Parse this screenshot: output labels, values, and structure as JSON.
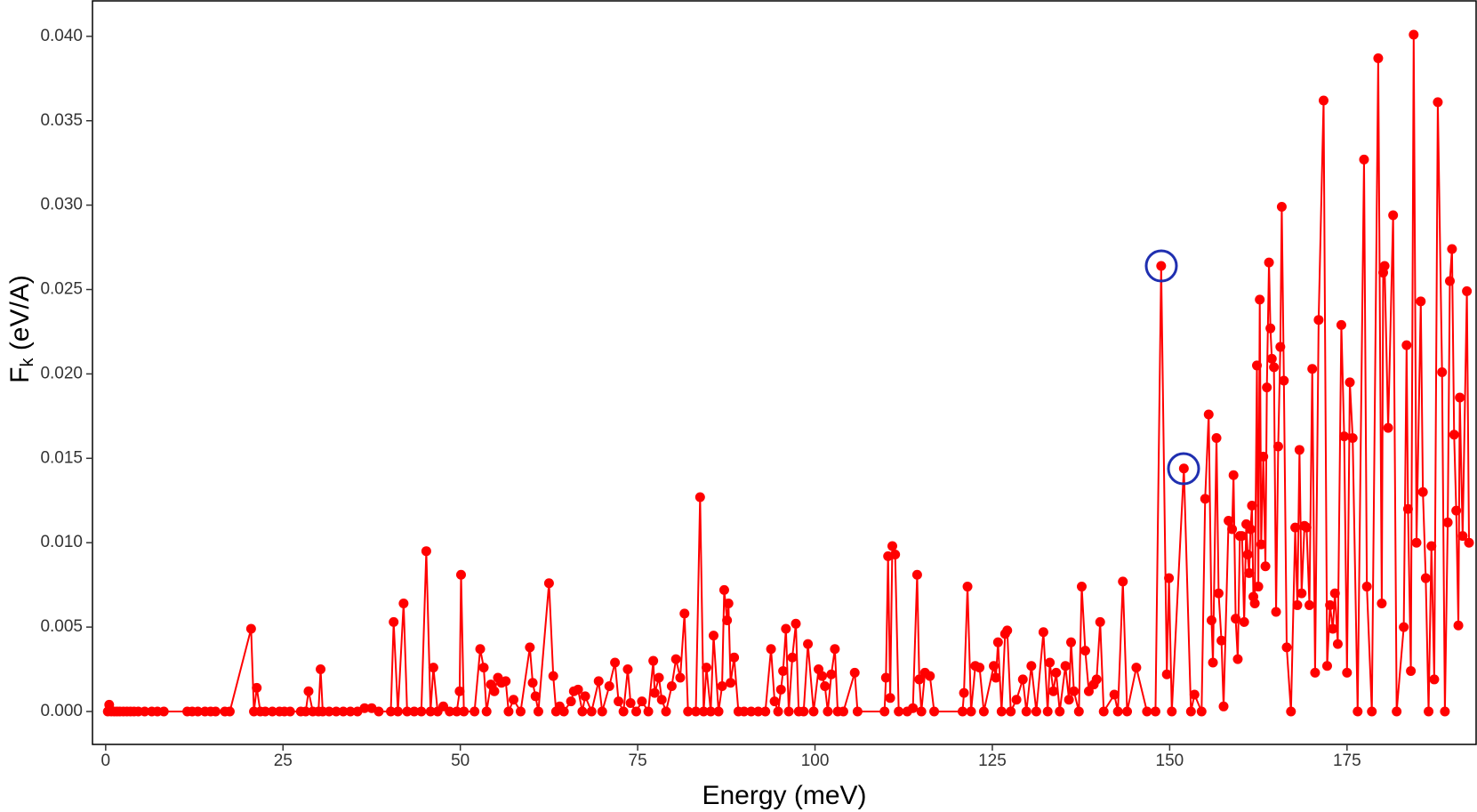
{
  "chart_data": {
    "type": "line",
    "xlabel": "Energy (meV)",
    "ylabel": [
      "F",
      "k",
      " (eV/A)"
    ],
    "color": "#ff0000",
    "highlight_color": "#1f2fb0",
    "xlim": [
      -1.86,
      193.2
    ],
    "ylim": [
      -0.00195,
      0.0421
    ],
    "xticks": [
      0,
      25,
      50,
      75,
      100,
      125,
      150,
      175
    ],
    "yticks": [
      {
        "value": 0,
        "label": "0.000"
      },
      {
        "value": 0.005,
        "label": "0.005"
      },
      {
        "value": 0.01,
        "label": "0.010"
      },
      {
        "value": 0.015,
        "label": "0.015"
      },
      {
        "value": 0.02,
        "label": "0.020"
      },
      {
        "value": 0.025,
        "label": "0.025"
      },
      {
        "value": 0.03,
        "label": "0.030"
      },
      {
        "value": 0.035,
        "label": "0.035"
      },
      {
        "value": 0.04,
        "label": "0.040"
      }
    ],
    "x": [
      0.3,
      0.5,
      0.8,
      1.2,
      1.6,
      2.0,
      2.5,
      3.0,
      3.5,
      4.0,
      4.6,
      5.5,
      6.5,
      7.3,
      8.2,
      11.5,
      12.2,
      13.0,
      14.0,
      14.8,
      15.5,
      16.8,
      17.5,
      20.5,
      20.9,
      21.3,
      21.8,
      22.5,
      23.5,
      24.5,
      25.2,
      26.0,
      27.5,
      28.2,
      28.6,
      29.2,
      30.0,
      30.3,
      30.6,
      31.5,
      32.5,
      33.5,
      34.5,
      35.5,
      36.5,
      37.5,
      38.5,
      40.2,
      40.6,
      41.2,
      42.0,
      42.5,
      43.5,
      44.5,
      45.2,
      45.8,
      46.2,
      46.8,
      47.6,
      48.5,
      49.5,
      49.9,
      50.1,
      50.5,
      52.0,
      52.8,
      53.3,
      53.7,
      54.3,
      54.8,
      55.3,
      55.8,
      56.4,
      56.8,
      57.5,
      58.5,
      59.8,
      60.2,
      60.6,
      61.0,
      62.5,
      63.1,
      63.5,
      64.0,
      64.6,
      65.6,
      66.0,
      66.6,
      67.2,
      67.6,
      68.5,
      69.5,
      70.0,
      71.0,
      71.8,
      72.3,
      73.0,
      73.6,
      74.0,
      74.8,
      75.6,
      76.5,
      77.2,
      77.4,
      78.0,
      78.4,
      79.0,
      79.8,
      80.4,
      81.0,
      81.6,
      82.1,
      83.2,
      83.8,
      84.3,
      84.7,
      85.3,
      85.7,
      86.4,
      86.9,
      87.2,
      87.6,
      87.8,
      88.1,
      88.6,
      89.2,
      90,
      91,
      92,
      93,
      93.8,
      94.3,
      94.8,
      95.2,
      95.5,
      95.9,
      96.3,
      96.8,
      97.3,
      97.7,
      98.4,
      99.0,
      99.8,
      100.5,
      101.0,
      101.4,
      101.8,
      102.3,
      102.8,
      103.2,
      104.0,
      105.6,
      106.0,
      109.8,
      110.0,
      110.3,
      110.6,
      110.9,
      111.3,
      111.8,
      113.0,
      113.8,
      114.4,
      114.7,
      115.0,
      115.5,
      116.2,
      116.8,
      120.8,
      121.0,
      121.5,
      122.0,
      122.6,
      123.2,
      123.8,
      125.2,
      125.5,
      125.8,
      126.3,
      126.8,
      127.1,
      127.6,
      128.4,
      129.3,
      129.8,
      130.5,
      131.2,
      132.2,
      132.8,
      133.1,
      133.6,
      134.0,
      134.5,
      135.3,
      135.8,
      136.1,
      136.5,
      137.2,
      137.6,
      138.1,
      138.6,
      139.3,
      139.7,
      140.2,
      140.7,
      142.2,
      142.7,
      143.4,
      144.0,
      145.3,
      146.8,
      148.0,
      148.8,
      149.6,
      149.9,
      150.3,
      152.0,
      153.0,
      153.5,
      154.5,
      155.0,
      155.5,
      155.9,
      156.1,
      156.6,
      156.9,
      157.3,
      157.6,
      158.3,
      158.8,
      159.0,
      159.3,
      159.6,
      159.9,
      160.2,
      160.5,
      160.8,
      161.0,
      161.2,
      161.4,
      161.6,
      161.8,
      162.0,
      162.3,
      162.5,
      162.7,
      162.9,
      163.2,
      163.5,
      163.7,
      164.0,
      164.2,
      164.4,
      164.7,
      165.0,
      165.3,
      165.6,
      165.8,
      166.1,
      166.5,
      167.1,
      167.7,
      168.0,
      168.3,
      168.6,
      169.0,
      169.3,
      169.7,
      170.1,
      170.5,
      171,
      171.7,
      172.2,
      172.6,
      173,
      173.3,
      173.7,
      174.2,
      174.6,
      175,
      175.4,
      175.8,
      176.5,
      177.4,
      177.8,
      178.5,
      179.4,
      179.9,
      180.1,
      180.3,
      180.8,
      181.5,
      182,
      183,
      183.4,
      183.6,
      184,
      184.4,
      184.8,
      185.4,
      185.7,
      186.1,
      186.5,
      186.9,
      187.3,
      187.8,
      188.4,
      188.8,
      189.2,
      189.5,
      189.8,
      190.1,
      190.4,
      190.7,
      190.9,
      191.3,
      191.9,
      192.2
    ],
    "values": [
      0,
      0.0004,
      0,
      0,
      0,
      0,
      0,
      0,
      0,
      0,
      0,
      0,
      0,
      0,
      0,
      0,
      0,
      0,
      0,
      0,
      0,
      0,
      0,
      0.0049,
      0,
      0.0014,
      0,
      0,
      0,
      0,
      0,
      0,
      0,
      0,
      0.0012,
      0,
      0,
      0.0025,
      0,
      0,
      0,
      0,
      0,
      0,
      0.0002,
      0.0002,
      0,
      0,
      0.0053,
      0,
      0.0064,
      0,
      0,
      0,
      0.0095,
      0,
      0.0026,
      0,
      0.0003,
      0,
      0,
      0.0012,
      0.0081,
      0,
      0,
      0.0037,
      0.0026,
      0,
      0.0016,
      0.0012,
      0.002,
      0.0017,
      0.0018,
      0,
      0.0007,
      0,
      0.0038,
      0.0017,
      0.0009,
      0,
      0.0076,
      0.0021,
      0,
      0.0003,
      0,
      0.0006,
      0.0012,
      0.0013,
      0,
      0.0009,
      0,
      0.0018,
      0,
      0.0015,
      0.0029,
      0.0006,
      0,
      0.0025,
      0.0005,
      0,
      0.0006,
      0,
      0.003,
      0.0011,
      0.002,
      0.0007,
      0,
      0.0015,
      0.0031,
      0.002,
      0.0058,
      0,
      0,
      0.0127,
      0,
      0.0026,
      0,
      0.0045,
      0,
      0.0015,
      0.0072,
      0.0054,
      0.0064,
      0.0017,
      0.0032,
      0,
      0,
      0,
      0,
      0,
      0.0037,
      0.0006,
      0,
      0.0013,
      0.0024,
      0.0049,
      0,
      0.0032,
      0.0052,
      0,
      0,
      0.004,
      0,
      0.0025,
      0.0021,
      0.0015,
      0,
      0.0022,
      0.0037,
      0,
      0,
      0.0023,
      0,
      0,
      0.002,
      0.0092,
      0.0008,
      0.0098,
      0.0093,
      0,
      0,
      0.0002,
      0.0081,
      0.0019,
      0,
      0.0023,
      0.0021,
      0,
      0,
      0.0011,
      0.0074,
      0,
      0.0027,
      0.0026,
      0,
      0.0027,
      0.002,
      0.0041,
      0,
      0.0046,
      0.0048,
      0,
      0.0007,
      0.0019,
      0,
      0.0027,
      0,
      0.0047,
      0,
      0.0029,
      0.0012,
      0.0023,
      0,
      0.0027,
      0.0007,
      0.0041,
      0.0012,
      0,
      0.0074,
      0.0036,
      0.0012,
      0.0016,
      0.0019,
      0.0053,
      0,
      0.001,
      0,
      0.0077,
      0,
      0.0026,
      0,
      0,
      0.0264,
      0.0022,
      0.0079,
      0,
      0.0144,
      0,
      0.001,
      0,
      0.0126,
      0.0176,
      0.0054,
      0.0029,
      0.0162,
      0.007,
      0.0042,
      0.0003,
      0.0113,
      0.0108,
      0.014,
      0.0055,
      0.0031,
      0.0104,
      0.0104,
      0.0053,
      0.0111,
      0.0093,
      0.0082,
      0.0108,
      0.0122,
      0.0068,
      0.0064,
      0.0205,
      0.0074,
      0.0244,
      0.0099,
      0.0151,
      0.0086,
      0.0192,
      0.0266,
      0.0227,
      0.0209,
      0.0204,
      0.0059,
      0.0157,
      0.0216,
      0.0299,
      0.0196,
      0.0038,
      0,
      0.0109,
      0.0063,
      0.0155,
      0.007,
      0.011,
      0.0109,
      0.0063,
      0.0203,
      0.0023,
      0.0232,
      0.0362,
      0.0027,
      0.0063,
      0.0049,
      0.007,
      0.004,
      0.0229,
      0.0163,
      0.0023,
      0.0195,
      0.0162,
      0,
      0.0327,
      0.0074,
      0,
      0.0387,
      0.0064,
      0.026,
      0.0264,
      0.0168,
      0.0294,
      0,
      0.005,
      0.0217,
      0.012,
      0.0024,
      0.0401,
      0.01,
      0.0243,
      0.013,
      0.0079,
      0,
      0.0098,
      0.0019,
      0.0361,
      0.0201,
      0,
      0.0112,
      0.0255,
      0.0274,
      0.0164,
      0.0119,
      0.0051,
      0.0186,
      0.0104,
      0.0249,
      0.01
    ]
  }
}
